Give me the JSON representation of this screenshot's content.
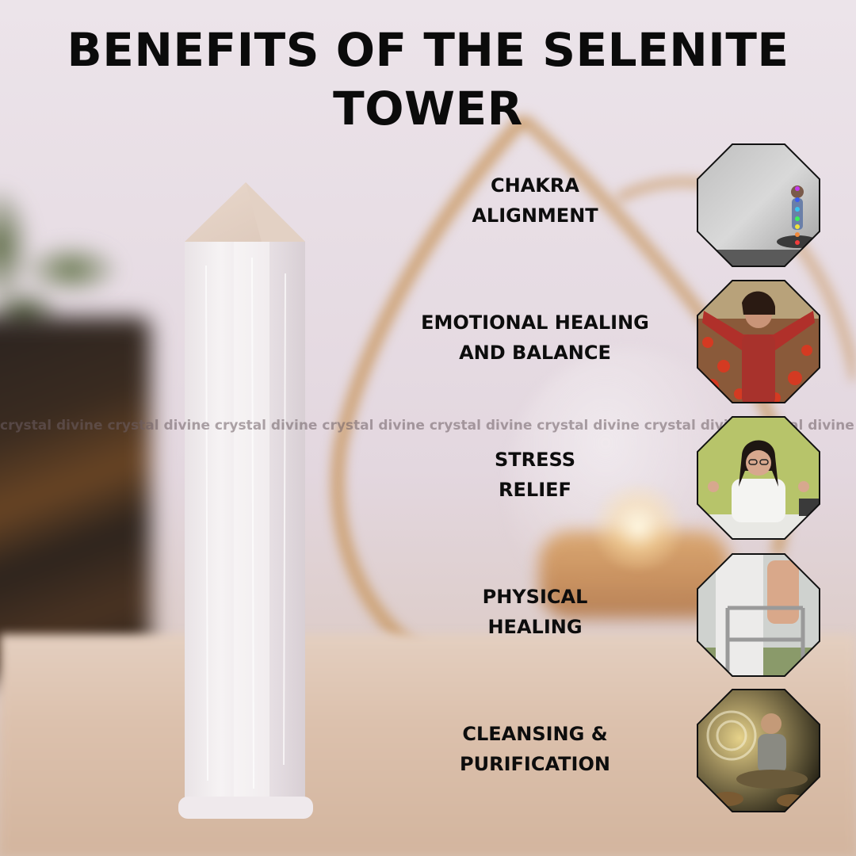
{
  "title": "BENEFITS OF THE SELENITE TOWER",
  "watermark": "crystal divine crystal divine crystal divine crystal divine crystal divine crystal divine crystal divine crystal divine crystal divine",
  "benefits": [
    {
      "line1": "CHAKRA",
      "line2": "ALIGNMENT"
    },
    {
      "line1": "EMOTIONAL HEALING",
      "line2": "AND BALANCE"
    },
    {
      "line1": "STRESS",
      "line2": "RELIEF"
    },
    {
      "line1": "PHYSICAL",
      "line2": "HEALING"
    },
    {
      "line1": "CLEANSING &",
      "line2": "PURIFICATION"
    }
  ]
}
